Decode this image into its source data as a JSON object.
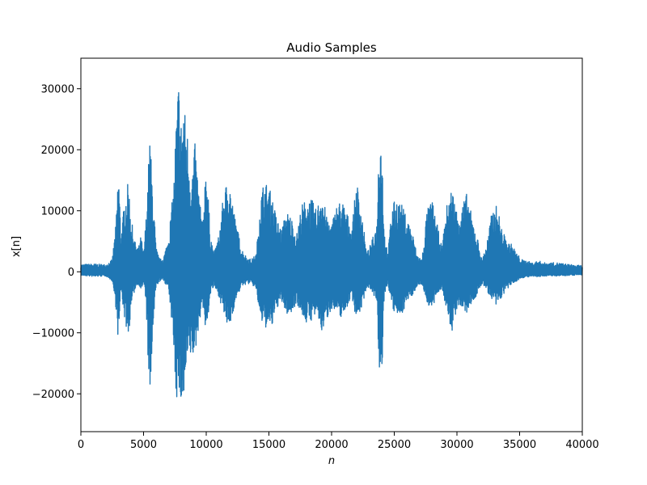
{
  "chart_data": {
    "type": "line",
    "title": "Audio Samples",
    "xlabel": "n",
    "ylabel": "x[n]",
    "xlim": [
      0,
      40000
    ],
    "ylim": [
      -26200,
      35000
    ],
    "grid": false,
    "legend": "none",
    "x_ticks": [
      0,
      5000,
      10000,
      15000,
      20000,
      25000,
      30000,
      35000,
      40000
    ],
    "y_ticks": [
      -20000,
      -10000,
      0,
      10000,
      20000,
      30000
    ],
    "series": [
      {
        "color": "#1f77b4",
        "envelope": {
          "x": [
            0,
            1000,
            2000,
            2500,
            2800,
            3000,
            3200,
            3500,
            3800,
            4000,
            4300,
            4600,
            4800,
            5000,
            5200,
            5500,
            5700,
            6000,
            6300,
            6600,
            6900,
            7100,
            7400,
            7600,
            7800,
            8000,
            8200,
            8500,
            8800,
            9100,
            9400,
            9700,
            10000,
            10300,
            10600,
            11000,
            11400,
            11800,
            12200,
            12500,
            12800,
            13200,
            13600,
            14000,
            14300,
            14600,
            15000,
            15300,
            15600,
            16000,
            16400,
            16800,
            17200,
            17600,
            18000,
            18400,
            18800,
            19200,
            19600,
            20000,
            20400,
            20800,
            21200,
            21600,
            22000,
            22400,
            22800,
            23200,
            23600,
            23800,
            24000,
            24200,
            24500,
            24800,
            25200,
            25600,
            26000,
            26400,
            26800,
            27200,
            27600,
            28000,
            28400,
            28800,
            29200,
            29600,
            30000,
            30400,
            30800,
            31200,
            31600,
            32000,
            32400,
            32800,
            33200,
            33600,
            34000,
            34400,
            34800,
            35200,
            35600,
            36000,
            36500,
            37000,
            38000,
            39000,
            40000
          ],
          "upper": [
            1200,
            1300,
            1200,
            2000,
            8000,
            17800,
            6000,
            12000,
            15000,
            9000,
            5000,
            4000,
            6000,
            3000,
            9000,
            22500,
            15000,
            4000,
            2000,
            2500,
            5000,
            8000,
            14000,
            25000,
            32000,
            25000,
            28000,
            23000,
            15000,
            21000,
            14000,
            8000,
            19000,
            7000,
            3000,
            6000,
            13000,
            16000,
            10000,
            7000,
            4000,
            2500,
            2000,
            3000,
            12000,
            15000,
            14000,
            12000,
            9000,
            7000,
            10000,
            9000,
            6000,
            11000,
            12000,
            12000,
            10000,
            14000,
            9000,
            8000,
            11000,
            12000,
            10000,
            7000,
            15000,
            10000,
            3000,
            5000,
            8000,
            23300,
            22500,
            7000,
            3000,
            11000,
            12000,
            11000,
            9000,
            7000,
            3000,
            2000,
            10000,
            12000,
            8000,
            4000,
            11000,
            14000,
            10000,
            11000,
            13000,
            9000,
            6000,
            2000,
            5000,
            10000,
            11000,
            7000,
            5000,
            4500,
            3000,
            2000,
            1800,
            1500,
            1800,
            1500,
            1500,
            1200,
            1000
          ],
          "lower": [
            -600,
            -800,
            -700,
            -1500,
            -6000,
            -12000,
            -3000,
            -8000,
            -11000,
            -6000,
            -3000,
            -2000,
            -3000,
            -2000,
            -5000,
            -23500,
            -12000,
            -2500,
            -1500,
            -1500,
            -2500,
            -5000,
            -12000,
            -21000,
            -20000,
            -22000,
            -22000,
            -15000,
            -14000,
            -14000,
            -9000,
            -5000,
            -11000,
            -4000,
            -2500,
            -4000,
            -7000,
            -10000,
            -6000,
            -4000,
            -2500,
            -2000,
            -2000,
            -3000,
            -8000,
            -9000,
            -9500,
            -9000,
            -6000,
            -5000,
            -7000,
            -7000,
            -5000,
            -7000,
            -8500,
            -8000,
            -7000,
            -10000,
            -8000,
            -6000,
            -7000,
            -7500,
            -6000,
            -4000,
            -8000,
            -6000,
            -2500,
            -3000,
            -5000,
            -18500,
            -18000,
            -4000,
            -2000,
            -6000,
            -7500,
            -7000,
            -5000,
            -4000,
            -2500,
            -2000,
            -5000,
            -6500,
            -4000,
            -2500,
            -7000,
            -10000,
            -6000,
            -6000,
            -7000,
            -5000,
            -4000,
            -2000,
            -3000,
            -5000,
            -6000,
            -4000,
            -3000,
            -2000,
            -1500,
            -1000,
            -900,
            -800,
            -900,
            -700,
            -700,
            -600,
            -500
          ]
        }
      }
    ]
  }
}
